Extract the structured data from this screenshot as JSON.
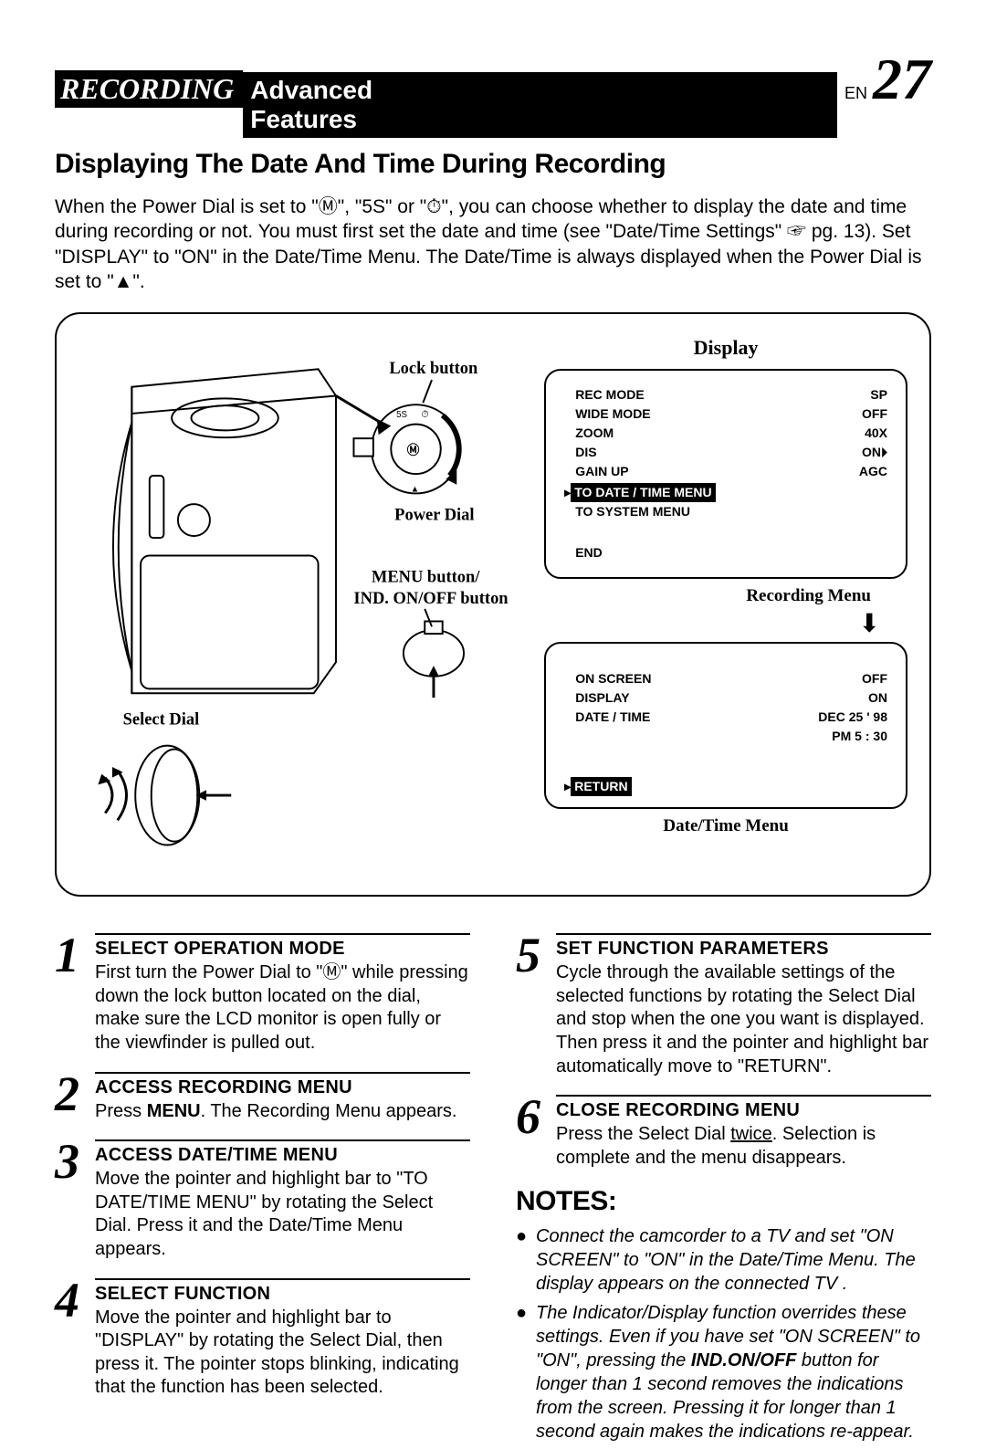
{
  "header": {
    "recording": "RECORDING",
    "advanced": "Advanced Features",
    "en": "EN",
    "page": "27"
  },
  "sub_heading": "Displaying The Date And Time During Recording",
  "intro": "When the Power Dial is set to \"Ⓜ\", \"5S\" or \"⏱\", you can choose whether to display the date and time during recording or not. You must first set the date and time (see \"Date/Time Settings\" ☞ pg. 13). Set \"DISPLAY\" to \"ON\" in the Date/Time Menu. The Date/Time is always displayed when the Power Dial is set to \"▲\".",
  "diagram": {
    "display_title": "Display",
    "lock_button": "Lock button",
    "power_dial": "Power Dial",
    "menu_button_1": "MENU button/",
    "menu_button_2": "IND. ON/OFF button",
    "select_dial": "Select Dial",
    "recording_menu_label": "Recording Menu",
    "date_time_menu_label": "Date/Time Menu",
    "rec_menu": {
      "rows": [
        [
          "REC MODE",
          "SP"
        ],
        [
          "WIDE MODE",
          "OFF"
        ],
        [
          "ZOOM",
          "40X"
        ],
        [
          "DIS",
          "ON⏵"
        ],
        [
          "GAIN UP",
          "AGC"
        ]
      ],
      "highlight": "TO DATE / TIME MENU",
      "system": "TO SYSTEM MENU",
      "end": "END"
    },
    "dt_menu": {
      "rows": [
        [
          "ON SCREEN",
          "OFF"
        ],
        [
          "DISPLAY",
          "ON"
        ],
        [
          "DATE / TIME",
          "DEC  25 ' 98"
        ],
        [
          "",
          "PM   5 : 30"
        ]
      ],
      "return": "RETURN"
    }
  },
  "steps": [
    {
      "n": "1",
      "title": "SELECT OPERATION MODE",
      "body": "First turn the Power Dial to \"Ⓜ\" while pressing down the lock button located on the dial, make sure the LCD monitor is open fully or the viewfinder is pulled out."
    },
    {
      "n": "2",
      "title": "ACCESS RECORDING MENU",
      "body_pre": "Press ",
      "body_bold": "MENU",
      "body_post": ". The Recording Menu appears."
    },
    {
      "n": "3",
      "title": "ACCESS DATE/TIME MENU",
      "body": "Move the pointer and highlight bar to \"TO DATE/TIME MENU\" by rotating the Select Dial. Press it and the Date/Time Menu appears."
    },
    {
      "n": "4",
      "title": "SELECT FUNCTION",
      "body": "Move the pointer and highlight bar to \"DISPLAY\" by rotating the Select Dial, then press it. The pointer stops blinking, indicating that the function has been selected."
    },
    {
      "n": "5",
      "title": "SET FUNCTION PARAMETERS",
      "body": "Cycle through the available settings of the selected functions by rotating the Select Dial and stop when the one you want is displayed. Then press it and the pointer and highlight bar automatically move to \"RETURN\"."
    },
    {
      "n": "6",
      "title": "CLOSE RECORDING MENU",
      "body_pre": "Press the Select Dial ",
      "body_u": "twice",
      "body_post": ". Selection is complete and the menu disappears."
    }
  ],
  "notes": {
    "heading": "NOTES:",
    "items": [
      "Connect the camcorder to a TV and set \"ON SCREEN\" to \"ON\" in the Date/Time Menu. The display appears on the connected TV .",
      "The Indicator/Display function overrides these settings. Even if you have set \"ON SCREEN\" to \"ON\", pressing the <b>IND.ON/OFF</b> button for longer than 1 second removes the indications from the screen. Pressing it for longer than 1 second again makes the indications re-appear."
    ]
  }
}
